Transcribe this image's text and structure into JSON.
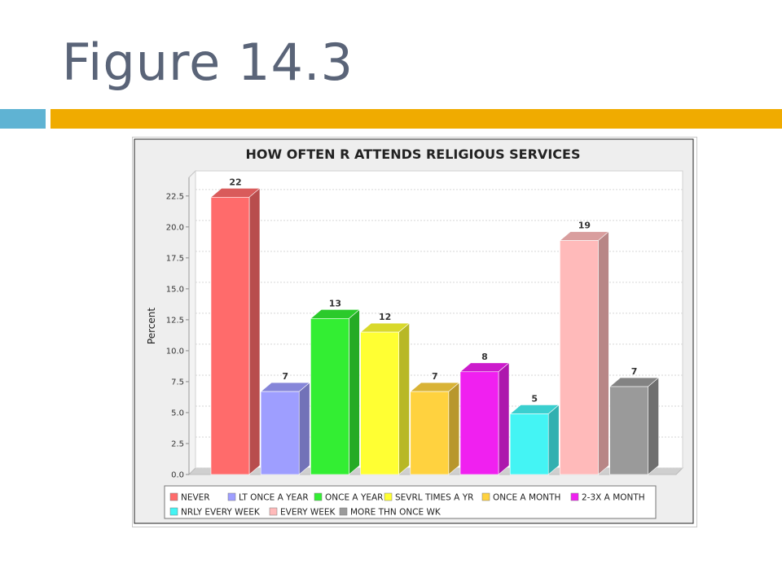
{
  "slide": {
    "title": "Figure 14.3",
    "accent_colors": {
      "teal": "#5fb3d3",
      "gold": "#f0ab00"
    }
  },
  "chart_data": {
    "type": "bar",
    "title": "HOW OFTEN R ATTENDS RELIGIOUS SERVICES",
    "ylabel": "Percent",
    "xlabel": "",
    "ylim": [
      0,
      24
    ],
    "yticks": [
      "0.0",
      "2.5",
      "5.0",
      "7.5",
      "10.0",
      "12.5",
      "15.0",
      "17.5",
      "20.0",
      "22.5"
    ],
    "grid": true,
    "legend_position": "bottom",
    "categories": [
      "NEVER",
      "LT ONCE A YEAR",
      "ONCE A YEAR",
      "SEVRL TIMES A YR",
      "ONCE A MONTH",
      "2-3X A MONTH",
      "NRLY EVERY WEEK",
      "EVERY WEEK",
      "MORE THN ONCE WK"
    ],
    "values": [
      22.4,
      6.7,
      12.6,
      11.5,
      6.7,
      8.3,
      4.9,
      18.9,
      7.1
    ],
    "data_labels": [
      "22",
      "7",
      "13",
      "12",
      "7",
      "8",
      "5",
      "19",
      "7"
    ],
    "colors": [
      "#ff6b6b",
      "#9e9eff",
      "#33ee33",
      "#ffff33",
      "#ffd23f",
      "#f020f0",
      "#44f4f4",
      "#ffbaba",
      "#9a9a9a"
    ]
  }
}
